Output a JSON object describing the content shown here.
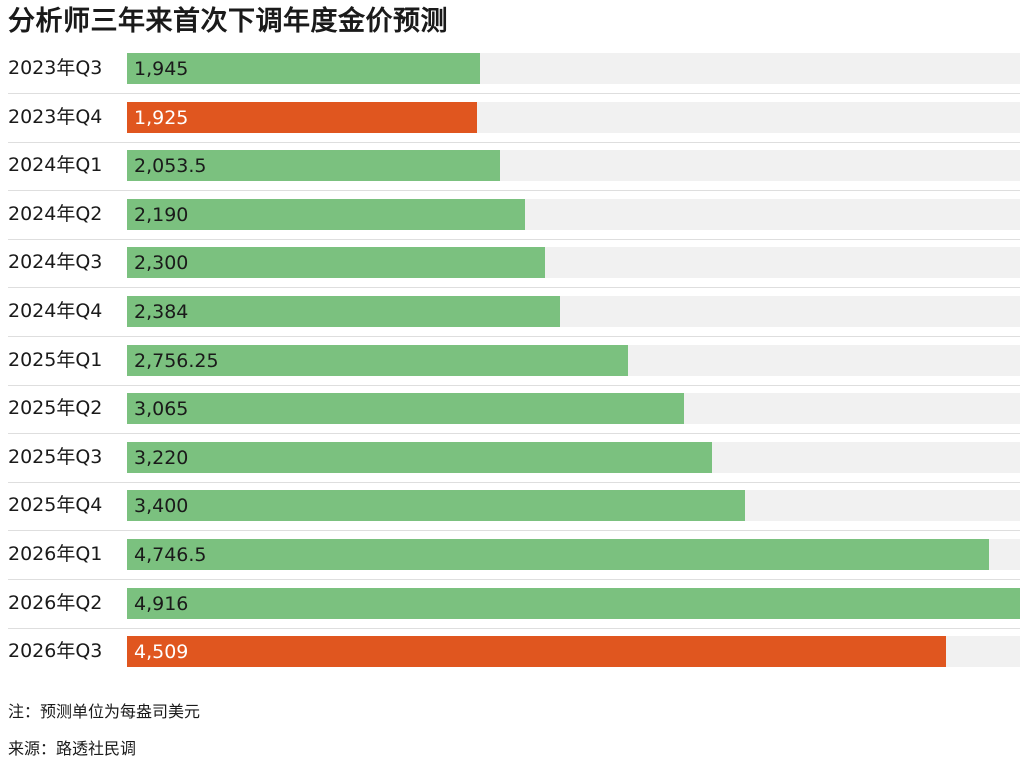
{
  "title": "分析师三年来首次下调年度金价预测",
  "note": "注：预测单位为每盎司美元",
  "source": "来源：路透社民调",
  "colors": {
    "normal": "#7bc17f",
    "lowered": "#e0561f",
    "track": "#f1f1f1",
    "text_dark": "#1a1a1a",
    "text_light": "#ffffff"
  },
  "chart_data": {
    "type": "bar",
    "orientation": "horizontal",
    "title": "分析师三年来首次下调年度金价预测",
    "xlim": [
      0,
      4916
    ],
    "grid": false,
    "legend": "none",
    "categories": [
      "2023年Q3",
      "2023年Q4",
      "2024年Q1",
      "2024年Q2",
      "2024年Q3",
      "2024年Q4",
      "2025年Q1",
      "2025年Q2",
      "2025年Q3",
      "2025年Q4",
      "2026年Q1",
      "2026年Q2",
      "2026年Q3"
    ],
    "values": [
      1945,
      1925,
      2053.5,
      2190,
      2300,
      2384,
      2756.25,
      3065,
      3220,
      3400,
      4746.5,
      4916,
      4509
    ],
    "value_labels": [
      "1,945",
      "1,925",
      "2,053.5",
      "2,190",
      "2,300",
      "2,384",
      "2,756.25",
      "3,065",
      "3,220",
      "3,400",
      "4,746.5",
      "4,916",
      "4,509"
    ],
    "highlight": [
      false,
      true,
      false,
      false,
      false,
      false,
      false,
      false,
      false,
      false,
      false,
      false,
      true
    ]
  }
}
